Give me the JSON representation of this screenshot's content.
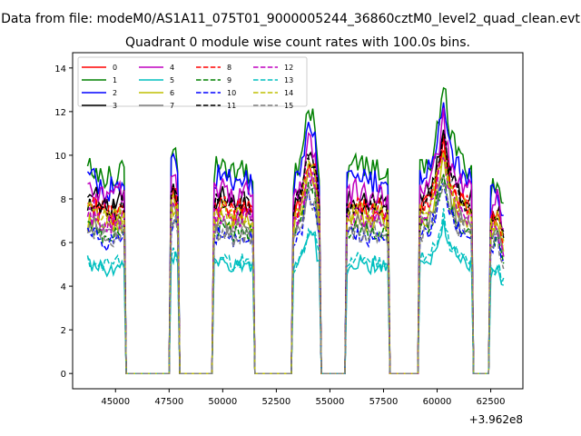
{
  "suptitle": "Data from file: modeM0/AS1A11_075T01_9000005244_36860cztM0_level2_quad_clean.evt",
  "chart_data": {
    "type": "line",
    "title": "Quadrant 0 module wise count rates with 100.0s bins.",
    "xlabel": "",
    "ylabel": "",
    "x_offset_text": "+3.962e8",
    "x_offset_value": 396200000,
    "xlim": [
      43000,
      64000
    ],
    "ylim": [
      -0.7,
      14.7
    ],
    "x_ticks": [
      45000,
      47500,
      50000,
      52500,
      55000,
      57500,
      60000,
      62500
    ],
    "x_tick_labels": [
      "45000",
      "47500",
      "50000",
      "52500",
      "55000",
      "57500",
      "60000",
      "62500"
    ],
    "y_ticks": [
      0,
      2,
      4,
      6,
      8,
      10,
      12,
      14
    ],
    "y_tick_labels": [
      "0",
      "2",
      "4",
      "6",
      "8",
      "10",
      "12",
      "14"
    ],
    "grid": false,
    "legend": {
      "placement": "upper-left",
      "columns": 4
    },
    "bin_seconds": 100,
    "active_intervals": [
      [
        43700,
        45400
      ],
      [
        47600,
        47900
      ],
      [
        49600,
        51400
      ],
      [
        53300,
        54500
      ],
      [
        55800,
        57700
      ],
      [
        59200,
        61600
      ],
      [
        62500,
        63100
      ]
    ],
    "interval_profile_x": [
      43700,
      44100,
      44600,
      45000,
      45400,
      47600,
      47750,
      47900,
      49600,
      50000,
      50500,
      51000,
      51400,
      53300,
      53700,
      54000,
      54300,
      54500,
      55800,
      56300,
      56800,
      57200,
      57700,
      59200,
      59700,
      60000,
      60300,
      60600,
      61000,
      61600,
      62500,
      62800,
      63100
    ],
    "interval_profile_factor": [
      1.0,
      1.0,
      0.95,
      0.97,
      1.0,
      1.05,
      1.1,
      1.0,
      1.0,
      1.02,
      0.97,
      1.0,
      0.96,
      0.95,
      1.05,
      1.3,
      1.2,
      1.0,
      0.97,
      1.02,
      0.98,
      1.0,
      0.95,
      1.0,
      1.05,
      1.2,
      1.4,
      1.15,
      1.05,
      1.0,
      0.9,
      0.95,
      0.8
    ],
    "series": [
      {
        "name": "0",
        "color": "#ff0000",
        "dash": "solid",
        "level": 7.5
      },
      {
        "name": "1",
        "color": "#008000",
        "dash": "solid",
        "level": 9.4
      },
      {
        "name": "2",
        "color": "#0000ff",
        "dash": "solid",
        "level": 8.9
      },
      {
        "name": "3",
        "color": "#000000",
        "dash": "solid",
        "level": 8.0
      },
      {
        "name": "4",
        "color": "#bf00bf",
        "dash": "solid",
        "level": 8.3
      },
      {
        "name": "5",
        "color": "#00bfbf",
        "dash": "solid",
        "level": 5.0
      },
      {
        "name": "6",
        "color": "#bfbf00",
        "dash": "solid",
        "level": 7.0
      },
      {
        "name": "7",
        "color": "#808080",
        "dash": "solid",
        "level": 6.8
      },
      {
        "name": "8",
        "color": "#ff0000",
        "dash": "dashed",
        "level": 7.6
      },
      {
        "name": "9",
        "color": "#008000",
        "dash": "dashed",
        "level": 6.6
      },
      {
        "name": "10",
        "color": "#0000ff",
        "dash": "dashed",
        "level": 6.3
      },
      {
        "name": "11",
        "color": "#000000",
        "dash": "dashed",
        "level": 7.8
      },
      {
        "name": "12",
        "color": "#bf00bf",
        "dash": "dashed",
        "level": 7.2
      },
      {
        "name": "13",
        "color": "#00bfbf",
        "dash": "dashed",
        "level": 5.2
      },
      {
        "name": "14",
        "color": "#bfbf00",
        "dash": "dashed",
        "level": 7.4
      },
      {
        "name": "15",
        "color": "#808080",
        "dash": "dashed",
        "level": 6.4
      }
    ]
  }
}
